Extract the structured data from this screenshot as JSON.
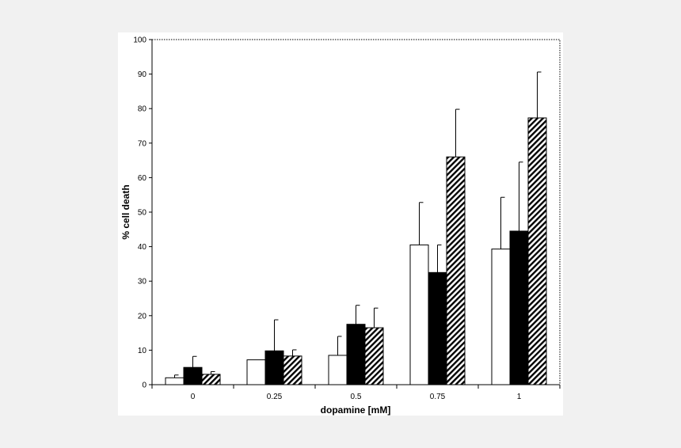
{
  "chart_data": {
    "type": "bar",
    "title": "",
    "xlabel": "dopamine [mM]",
    "ylabel": "% cell death",
    "ylim": [
      0,
      100
    ],
    "yticks": [
      0,
      10,
      20,
      30,
      40,
      50,
      60,
      70,
      80,
      90,
      100
    ],
    "categories": [
      "0",
      "0.25",
      "0.5",
      "0.75",
      "1"
    ],
    "grid": false,
    "legend": "none",
    "series": [
      {
        "fill": "white",
        "values": [
          2,
          7.2,
          8.5,
          40.5,
          39.3
        ],
        "errors": [
          0.8,
          0,
          5.5,
          12.3,
          15
        ]
      },
      {
        "fill": "black",
        "values": [
          5,
          9.8,
          17.5,
          32.5,
          44.5
        ],
        "errors": [
          3.2,
          9,
          5.5,
          8,
          20
        ]
      },
      {
        "fill": "hatched",
        "values": [
          3,
          8.3,
          16.5,
          66,
          77.3
        ],
        "errors": [
          0.8,
          1.8,
          5.7,
          13.8,
          13.3
        ]
      }
    ]
  }
}
